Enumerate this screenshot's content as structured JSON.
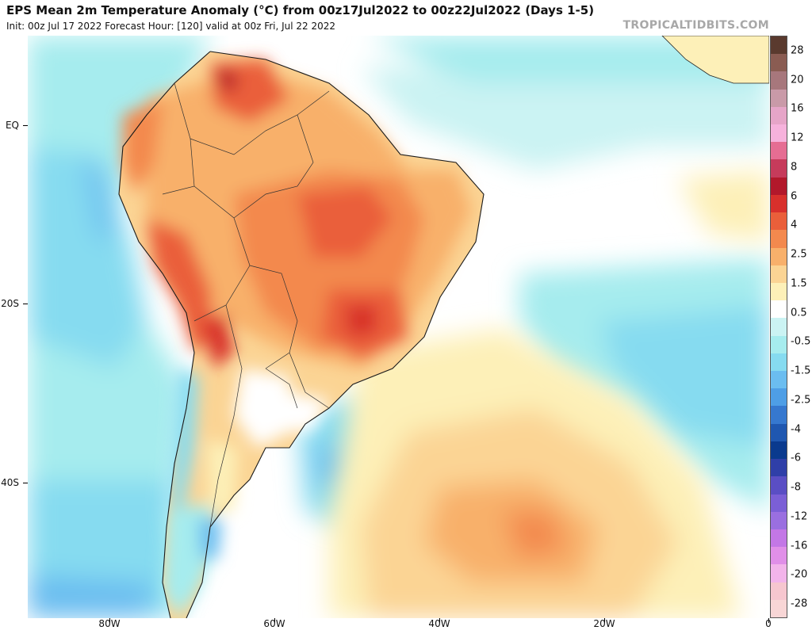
{
  "header": {
    "title": "EPS Mean 2m Temperature Anomaly (°C) from 00z17Jul2022 to 00z22Jul2022 (Days 1-5)",
    "subtitle": "Init: 00z Jul 17 2022   Forecast Hour: [120]   valid at 00z Fri, Jul 22 2022",
    "watermark": "TROPICALTIDBITS.COM"
  },
  "map": {
    "lat_labels": [
      "EQ",
      "20S",
      "40S"
    ],
    "lon_labels": [
      "80W",
      "60W",
      "40W",
      "20W",
      "0"
    ]
  },
  "colorbar": {
    "labels": [
      "28",
      "20",
      "16",
      "12",
      "8",
      "6",
      "4",
      "2.5",
      "1.5",
      "0.5",
      "-0.5",
      "-1.5",
      "-2.5",
      "-4",
      "-6",
      "-8",
      "-12",
      "-16",
      "-20",
      "-28"
    ],
    "colors": [
      "#5a3a2e",
      "#8a5c52",
      "#a7777c",
      "#c99aa8",
      "#e6a5c8",
      "#f6b2dc",
      "#e56d93",
      "#c63b5b",
      "#b2182b",
      "#d8302c",
      "#ea5f3a",
      "#f3894e",
      "#f8b06b",
      "#fbd494",
      "#fdf0b8",
      "#ffffff",
      "#cbf3f3",
      "#a6ecee",
      "#86dbf0",
      "#6bbdf0",
      "#4e9ee6",
      "#3678cf",
      "#1f57b0",
      "#0a3a8e",
      "#2f3fa8",
      "#5a4ec4",
      "#7b5fd6",
      "#9a6fe0",
      "#c377e6",
      "#e08fe8",
      "#f2b4ea",
      "#f6c6cf",
      "#f8d6d6"
    ]
  }
}
